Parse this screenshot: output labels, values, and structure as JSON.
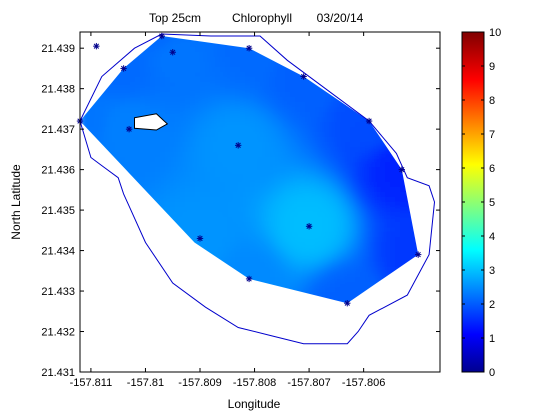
{
  "chart_data": {
    "type": "heatmap",
    "title": {
      "depth": "Top 25cm",
      "variable": "Chlorophyll",
      "date": "03/20/14"
    },
    "xlabel": "Longitude",
    "ylabel": "North Latitude",
    "xlim": [
      -157.8112,
      -157.8046
    ],
    "ylim": [
      21.431,
      21.4394
    ],
    "x_ticks": [
      -157.811,
      -157.81,
      -157.809,
      -157.808,
      -157.807,
      -157.806
    ],
    "x_tick_labels": [
      "-157.811",
      "-157.81",
      "-157.809",
      "-157.808",
      "-157.807",
      "-157.806"
    ],
    "y_ticks": [
      21.431,
      21.432,
      21.433,
      21.434,
      21.435,
      21.436,
      21.437,
      21.438,
      21.439
    ],
    "y_tick_labels": [
      "21.431",
      "21.432",
      "21.433",
      "21.434",
      "21.435",
      "21.436",
      "21.437",
      "21.438",
      "21.439"
    ],
    "colorbar": {
      "min": 0,
      "max": 10,
      "ticks": [
        0,
        1,
        2,
        3,
        4,
        5,
        6,
        7,
        8,
        9,
        10
      ],
      "tick_labels": [
        "0",
        "1",
        "2",
        "3",
        "4",
        "5",
        "6",
        "7",
        "8",
        "9",
        "10"
      ],
      "colormap": "jet"
    },
    "sample_points": [
      {
        "x": -157.8109,
        "y": 21.43905,
        "value": 2.2
      },
      {
        "x": -157.8104,
        "y": 21.4385,
        "value": 2.3
      },
      {
        "x": -157.8112,
        "y": 21.4372,
        "value": 2.4
      },
      {
        "x": -157.8103,
        "y": 21.437,
        "value": 2.5
      },
      {
        "x": -157.8097,
        "y": 21.4393,
        "value": 2.3
      },
      {
        "x": -157.8095,
        "y": 21.4389,
        "value": 2.4
      },
      {
        "x": -157.8081,
        "y": 21.439,
        "value": 2.3
      },
      {
        "x": -157.8071,
        "y": 21.4383,
        "value": 2.2
      },
      {
        "x": -157.8059,
        "y": 21.4372,
        "value": 2.0
      },
      {
        "x": -157.8053,
        "y": 21.436,
        "value": 1.6
      },
      {
        "x": -157.805,
        "y": 21.4339,
        "value": 1.8
      },
      {
        "x": -157.8063,
        "y": 21.4327,
        "value": 2.2
      },
      {
        "x": -157.8081,
        "y": 21.4333,
        "value": 2.6
      },
      {
        "x": -157.809,
        "y": 21.4343,
        "value": 2.7
      },
      {
        "x": -157.8083,
        "y": 21.4366,
        "value": 2.7
      },
      {
        "x": -157.807,
        "y": 21.4346,
        "value": 3.1
      }
    ],
    "hull_polygon": [
      [
        -157.8112,
        21.4372
      ],
      [
        -157.8104,
        21.4385
      ],
      [
        -157.8097,
        21.4393
      ],
      [
        -157.8081,
        21.439
      ],
      [
        -157.8071,
        21.4383
      ],
      [
        -157.8059,
        21.4372
      ],
      [
        -157.8053,
        21.436
      ],
      [
        -157.805,
        21.4339
      ],
      [
        -157.8063,
        21.4327
      ],
      [
        -157.8081,
        21.4333
      ],
      [
        -157.8091,
        21.4342
      ]
    ],
    "island_polygon": [
      [
        -157.8102,
        21.43728
      ],
      [
        -157.8098,
        21.43738
      ],
      [
        -157.8096,
        21.43713
      ],
      [
        -157.8098,
        21.43698
      ],
      [
        -157.8102,
        21.43702
      ]
    ],
    "shoreline": [
      [
        -157.8112,
        21.4372
      ],
      [
        -157.8108,
        21.4383
      ],
      [
        -157.8102,
        21.439
      ],
      [
        -157.8097,
        21.43935
      ],
      [
        -157.8088,
        21.4393
      ],
      [
        -157.8079,
        21.4393
      ],
      [
        -157.8074,
        21.4387
      ],
      [
        -157.8066,
        21.4379
      ],
      [
        -157.8059,
        21.4372
      ],
      [
        -157.8054,
        21.4364
      ],
      [
        -157.8052,
        21.4358
      ],
      [
        -157.8048,
        21.4356
      ],
      [
        -157.8047,
        21.4352
      ],
      [
        -157.8048,
        21.4339
      ],
      [
        -157.8052,
        21.4329
      ],
      [
        -157.8059,
        21.4324
      ],
      [
        -157.8061,
        21.432
      ],
      [
        -157.8063,
        21.4317
      ],
      [
        -157.80665,
        21.4317
      ],
      [
        -157.8071,
        21.4317
      ],
      [
        -157.8077,
        21.4319
      ],
      [
        -157.8083,
        21.4321
      ],
      [
        -157.8089,
        21.4326
      ],
      [
        -157.8095,
        21.4332
      ],
      [
        -157.81,
        21.4342
      ],
      [
        -157.8104,
        21.4354
      ],
      [
        -157.8105,
        21.4358
      ],
      [
        -157.8108,
        21.4361
      ],
      [
        -157.811,
        21.4363
      ],
      [
        -157.8112,
        21.4372
      ]
    ],
    "grid": false,
    "legend": "none"
  }
}
